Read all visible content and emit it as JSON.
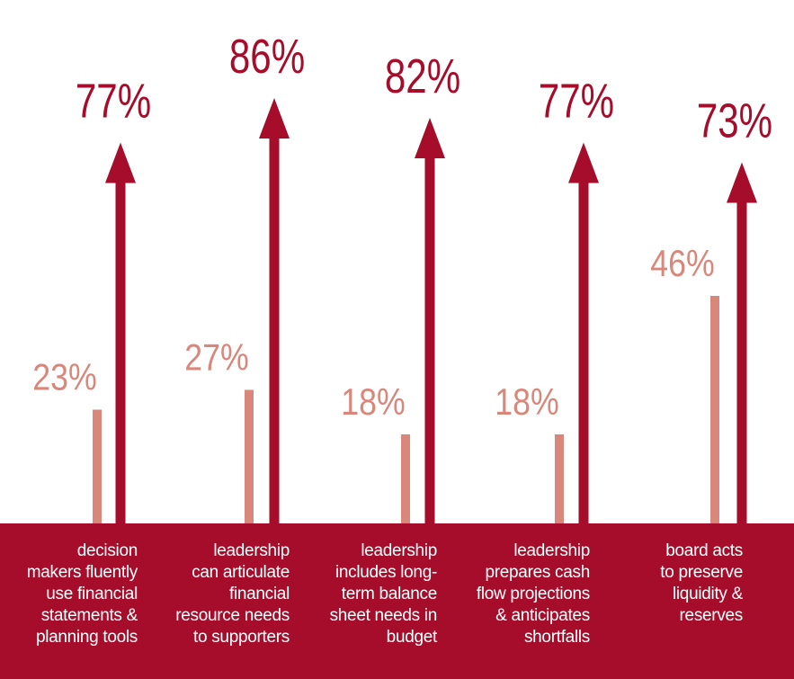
{
  "colors": {
    "primary": "#a50d2a",
    "secondary": "#d9877a",
    "footer_text": "#ffffff"
  },
  "chart_data": {
    "type": "bar",
    "categories": [
      "decision\nmakers fluently\nuse financial\nstatements &\nplanning tools",
      "leadership\ncan articulate\nfinancial\nresource needs\nto supporters",
      "leadership\nincludes long-\nterm balance\nsheet needs in\nbudget",
      "leadership\nprepares cash\nflow projections\n& anticipates\nshortfalls",
      "board acts\nto preserve\nliquidity &\nreserves"
    ],
    "series": [
      {
        "values": [
          23,
          27,
          18,
          18,
          46
        ],
        "labels": [
          "23%",
          "27%",
          "18%",
          "18%",
          "46%"
        ],
        "color": "#d9877a"
      },
      {
        "values": [
          77,
          86,
          82,
          77,
          73
        ],
        "labels": [
          "77%",
          "86%",
          "82%",
          "77%",
          "73%"
        ],
        "color": "#a50d2a"
      }
    ]
  }
}
